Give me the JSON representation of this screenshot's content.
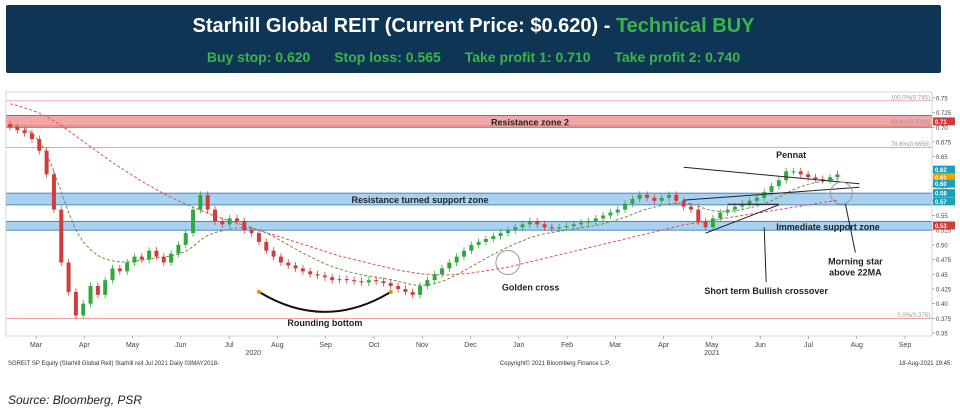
{
  "header": {
    "title_main": "Starhill Global REIT (Current Price: $0.620) - ",
    "title_signal": "Technical BUY",
    "buy_stop": "Buy stop: 0.620",
    "stop_loss": "Stop loss: 0.565",
    "take_profit_1": "Take profit 1: 0.710",
    "take_profit_2": "Take profit 2: 0.740"
  },
  "chart_data": {
    "type": "candlestick",
    "ylim": [
      0.345,
      0.76
    ],
    "y_ticks": [
      "0.75",
      "0.725",
      "0.70",
      "0.675",
      "0.65",
      "0.625",
      "0.60",
      "0.575",
      "0.55",
      "0.525",
      "0.50",
      "0.475",
      "0.45",
      "0.425",
      "0.40",
      "0.375",
      "0.35"
    ],
    "y_tick_values": [
      0.75,
      0.725,
      0.7,
      0.675,
      0.65,
      0.625,
      0.6,
      0.575,
      0.55,
      0.525,
      0.5,
      0.475,
      0.45,
      0.425,
      0.4,
      0.375,
      0.35
    ],
    "x_month_labels": [
      "Mar",
      "Apr",
      "May",
      "Jun",
      "Jul",
      "Aug",
      "Sep",
      "Oct",
      "Nov",
      "Dec",
      "Jan",
      "Feb",
      "Mar",
      "Apr",
      "May",
      "Jun",
      "Jul",
      "Aug",
      "Sep"
    ],
    "x_month_index": [
      0,
      1,
      2,
      3,
      4,
      5,
      6,
      7,
      8,
      9,
      10,
      11,
      12,
      13,
      14,
      15,
      16,
      17,
      18
    ],
    "x_year_labels": [
      {
        "label": "2020",
        "month_index": 4.5
      },
      {
        "label": "2021",
        "month_index": 14
      }
    ],
    "fib_levels": [
      {
        "label": "100.0%(0.745)",
        "value": 0.745
      },
      {
        "label": "88.6%(0.7028)",
        "value": 0.7028
      },
      {
        "label": "78.6%(0.6658)",
        "value": 0.6658
      },
      {
        "label": "0.0%(0.375)",
        "value": 0.375
      }
    ],
    "zones": [
      {
        "label": "Resistance zone 2",
        "from": 0.7,
        "to": 0.72,
        "color": "#f4a6a6"
      },
      {
        "label": "Resistance turned support zone",
        "from": 0.568,
        "to": 0.588,
        "color": "#a9d2f2"
      },
      {
        "label": "Immediate support zone",
        "from": 0.525,
        "to": 0.54,
        "color": "#a9d2f2"
      }
    ],
    "right_badges": [
      {
        "text": "0.71",
        "value": 0.71,
        "color": "#d33a3a"
      },
      {
        "text": "0.62",
        "value": 0.628,
        "color": "#1aa0b8"
      },
      {
        "text": "0.61",
        "value": 0.615,
        "color": "#f0a400"
      },
      {
        "text": "0.60",
        "value": 0.604,
        "color": "#1aa0b8"
      },
      {
        "text": "0.58",
        "value": 0.588,
        "color": "#1aa0b8"
      },
      {
        "text": "0.57",
        "value": 0.574,
        "color": "#1aa0b8"
      },
      {
        "text": "0.53",
        "value": 0.533,
        "color": "#d33a3a"
      }
    ],
    "annotations": {
      "pennat": "Pennat",
      "golden_cross": "Golden cross",
      "rounding_bottom": "Rounding bottom",
      "morning_star": "Morning star",
      "morning_star_2": "above 22MA",
      "bullish_crossover": "Short term Bullish crossover"
    },
    "closes": [
      0.7,
      0.695,
      0.69,
      0.68,
      0.66,
      0.62,
      0.56,
      0.47,
      0.42,
      0.38,
      0.4,
      0.43,
      0.415,
      0.44,
      0.46,
      0.455,
      0.47,
      0.48,
      0.475,
      0.49,
      0.48,
      0.47,
      0.485,
      0.5,
      0.52,
      0.56,
      0.585,
      0.56,
      0.54,
      0.535,
      0.545,
      0.54,
      0.525,
      0.52,
      0.505,
      0.49,
      0.48,
      0.47,
      0.465,
      0.46,
      0.455,
      0.45,
      0.448,
      0.445,
      0.44,
      0.442,
      0.44,
      0.438,
      0.436,
      0.44,
      0.438,
      0.435,
      0.43,
      0.425,
      0.42,
      0.415,
      0.43,
      0.44,
      0.45,
      0.46,
      0.47,
      0.48,
      0.49,
      0.5,
      0.505,
      0.51,
      0.515,
      0.52,
      0.525,
      0.53,
      0.535,
      0.54,
      0.535,
      0.53,
      0.528,
      0.53,
      0.532,
      0.535,
      0.538,
      0.54,
      0.545,
      0.55,
      0.555,
      0.56,
      0.57,
      0.578,
      0.585,
      0.58,
      0.575,
      0.58,
      0.585,
      0.575,
      0.565,
      0.56,
      0.54,
      0.53,
      0.545,
      0.555,
      0.56,
      0.565,
      0.57,
      0.575,
      0.58,
      0.59,
      0.6,
      0.61,
      0.625,
      0.625,
      0.62,
      0.615,
      0.612,
      0.61,
      0.615,
      0.62
    ],
    "ma_short": [
      0.705,
      0.702,
      0.698,
      0.69,
      0.676,
      0.655,
      0.625,
      0.59,
      0.555,
      0.525,
      0.505,
      0.492,
      0.482,
      0.476,
      0.473,
      0.471,
      0.471,
      0.472,
      0.474,
      0.476,
      0.478,
      0.479,
      0.481,
      0.484,
      0.489,
      0.497,
      0.508,
      0.516,
      0.521,
      0.524,
      0.527,
      0.529,
      0.529,
      0.528,
      0.525,
      0.52,
      0.514,
      0.507,
      0.5,
      0.493,
      0.486,
      0.48,
      0.474,
      0.468,
      0.463,
      0.459,
      0.455,
      0.452,
      0.449,
      0.447,
      0.445,
      0.443,
      0.441,
      0.438,
      0.435,
      0.432,
      0.431,
      0.432,
      0.434,
      0.438,
      0.443,
      0.449,
      0.456,
      0.463,
      0.47,
      0.477,
      0.484,
      0.49,
      0.496,
      0.502,
      0.507,
      0.512,
      0.516,
      0.519,
      0.521,
      0.523,
      0.525,
      0.527,
      0.529,
      0.531,
      0.533,
      0.536,
      0.539,
      0.543,
      0.547,
      0.552,
      0.557,
      0.561,
      0.564,
      0.567,
      0.57,
      0.571,
      0.571,
      0.57,
      0.566,
      0.561,
      0.558,
      0.557,
      0.557,
      0.558,
      0.56,
      0.563,
      0.566,
      0.57,
      0.575,
      0.581,
      0.588,
      0.594,
      0.599,
      0.603,
      0.606,
      0.608,
      0.61,
      0.612
    ],
    "ma_long": [
      0.74,
      0.737,
      0.733,
      0.729,
      0.724,
      0.718,
      0.711,
      0.703,
      0.694,
      0.685,
      0.676,
      0.667,
      0.658,
      0.649,
      0.64,
      0.632,
      0.624,
      0.616,
      0.608,
      0.601,
      0.594,
      0.587,
      0.581,
      0.575,
      0.569,
      0.564,
      0.559,
      0.554,
      0.549,
      0.545,
      0.541,
      0.537,
      0.533,
      0.529,
      0.525,
      0.521,
      0.517,
      0.513,
      0.509,
      0.505,
      0.501,
      0.497,
      0.493,
      0.489,
      0.485,
      0.481,
      0.478,
      0.475,
      0.472,
      0.469,
      0.466,
      0.463,
      0.46,
      0.457,
      0.455,
      0.453,
      0.451,
      0.45,
      0.449,
      0.449,
      0.449,
      0.45,
      0.451,
      0.452,
      0.454,
      0.456,
      0.458,
      0.46,
      0.462,
      0.465,
      0.468,
      0.471,
      0.474,
      0.477,
      0.48,
      0.483,
      0.486,
      0.489,
      0.492,
      0.495,
      0.498,
      0.501,
      0.504,
      0.507,
      0.51,
      0.513,
      0.516,
      0.519,
      0.522,
      0.525,
      0.528,
      0.531,
      0.534,
      0.536,
      0.538,
      0.54,
      0.542,
      0.544,
      0.546,
      0.548,
      0.55,
      0.552,
      0.554,
      0.556,
      0.558,
      0.56,
      0.562,
      0.564,
      0.566,
      0.568,
      0.57,
      0.572,
      0.574,
      0.576
    ]
  },
  "footer": {
    "left": "SGREIT SP Equity (Starhill Global Reit) Starhill reit Jul 2021  Daily 03MAY2018-",
    "center": "Copyright© 2021 Bloomberg Finance L.P.",
    "right": "18-Aug-2021 19:45:"
  },
  "source": "Source: Bloomberg, PSR"
}
